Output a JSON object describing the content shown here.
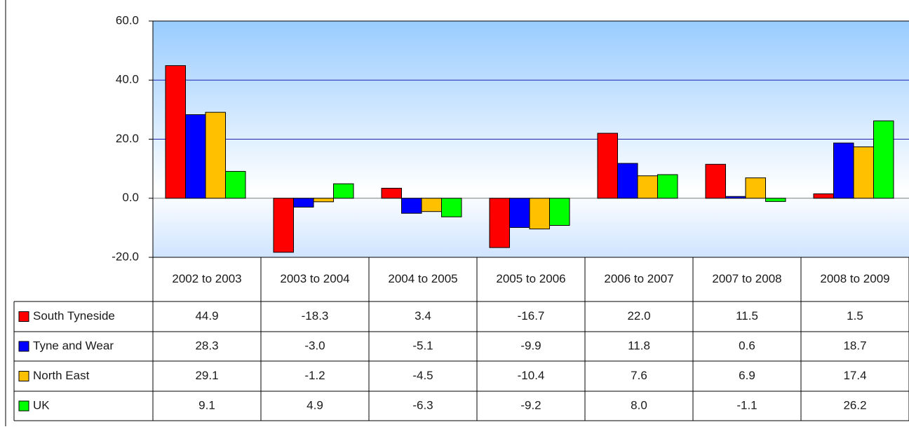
{
  "chart_data": {
    "type": "bar",
    "categories": [
      "2002 to 2003",
      "2003 to 2004",
      "2004 to 2005",
      "2005 to 2006",
      "2006 to 2007",
      "2007 to 2008",
      "2008 to 2009"
    ],
    "series": [
      {
        "name": "South Tyneside",
        "color": "#ff0000",
        "values": [
          44.9,
          -18.3,
          3.4,
          -16.7,
          22.0,
          11.5,
          1.5
        ],
        "value_labels": [
          "44.9",
          "-18.3",
          "3.4",
          "-16.7",
          "22.0",
          "11.5",
          "1.5"
        ]
      },
      {
        "name": "Tyne and Wear",
        "color": "#0000ff",
        "values": [
          28.3,
          -3.0,
          -5.1,
          -9.9,
          11.8,
          0.6,
          18.7
        ],
        "value_labels": [
          "28.3",
          "-3.0",
          "-5.1",
          "-9.9",
          "11.8",
          "0.6",
          "18.7"
        ]
      },
      {
        "name": "North East",
        "color": "#ffc000",
        "values": [
          29.1,
          -1.2,
          -4.5,
          -10.4,
          7.6,
          6.9,
          17.4
        ],
        "value_labels": [
          "29.1",
          "-1.2",
          "-4.5",
          "-10.4",
          "7.6",
          "6.9",
          "17.4"
        ]
      },
      {
        "name": "UK",
        "color": "#00ff00",
        "values": [
          9.1,
          4.9,
          -6.3,
          -9.2,
          8.0,
          -1.1,
          26.2
        ],
        "value_labels": [
          "9.1",
          "4.9",
          "-6.3",
          "-9.2",
          "8.0",
          "-1.1",
          "26.2"
        ]
      }
    ],
    "ylim": [
      -20,
      60
    ],
    "yticks": [
      {
        "value": -20,
        "label": "-20.0"
      },
      {
        "value": 0,
        "label": "0.0"
      },
      {
        "value": 20,
        "label": "20.0"
      },
      {
        "value": 40,
        "label": "40.0"
      },
      {
        "value": 60,
        "label": "60.0"
      }
    ],
    "grid": true
  }
}
